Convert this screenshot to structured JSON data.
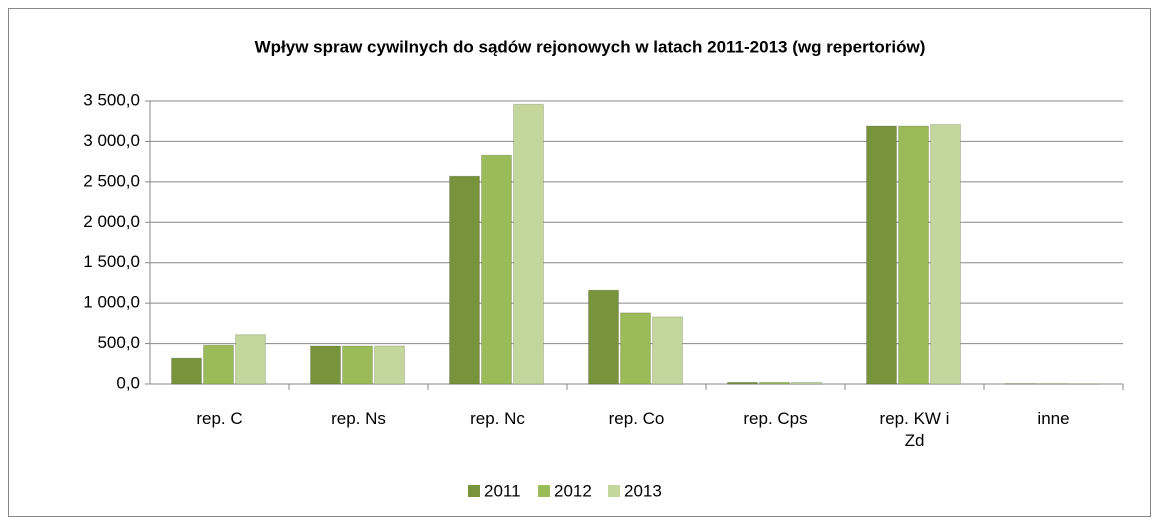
{
  "chart_data": {
    "type": "bar",
    "title": "Wpływ spraw cywilnych do sądów rejonowych w latach 2011-2013 (wg repertoriów)",
    "categories": [
      "rep. C",
      "rep. Ns",
      "rep. Nc",
      "rep. Co",
      "rep. Cps",
      "rep. KW i Zd",
      "inne"
    ],
    "series": [
      {
        "name": "2011",
        "color": "#77933c",
        "values": [
          320,
          470,
          2570,
          1160,
          20,
          3190,
          5
        ]
      },
      {
        "name": "2012",
        "color": "#9bbb59",
        "values": [
          480,
          470,
          2830,
          880,
          20,
          3190,
          5
        ]
      },
      {
        "name": "2013",
        "color": "#c3d69b",
        "values": [
          610,
          470,
          3460,
          830,
          20,
          3210,
          5
        ]
      }
    ],
    "ylim": [
      0,
      3500
    ],
    "yticks": [
      {
        "value": 0,
        "label": "0,0"
      },
      {
        "value": 500,
        "label": "500,0"
      },
      {
        "value": 1000,
        "label": "1 000,0"
      },
      {
        "value": 1500,
        "label": "1 500,0"
      },
      {
        "value": 2000,
        "label": "2 000,0"
      },
      {
        "value": 2500,
        "label": "2 500,0"
      },
      {
        "value": 3000,
        "label": "3 000,0"
      },
      {
        "value": 3500,
        "label": "3 500,0"
      }
    ],
    "grid": true,
    "legend": "bottom"
  }
}
